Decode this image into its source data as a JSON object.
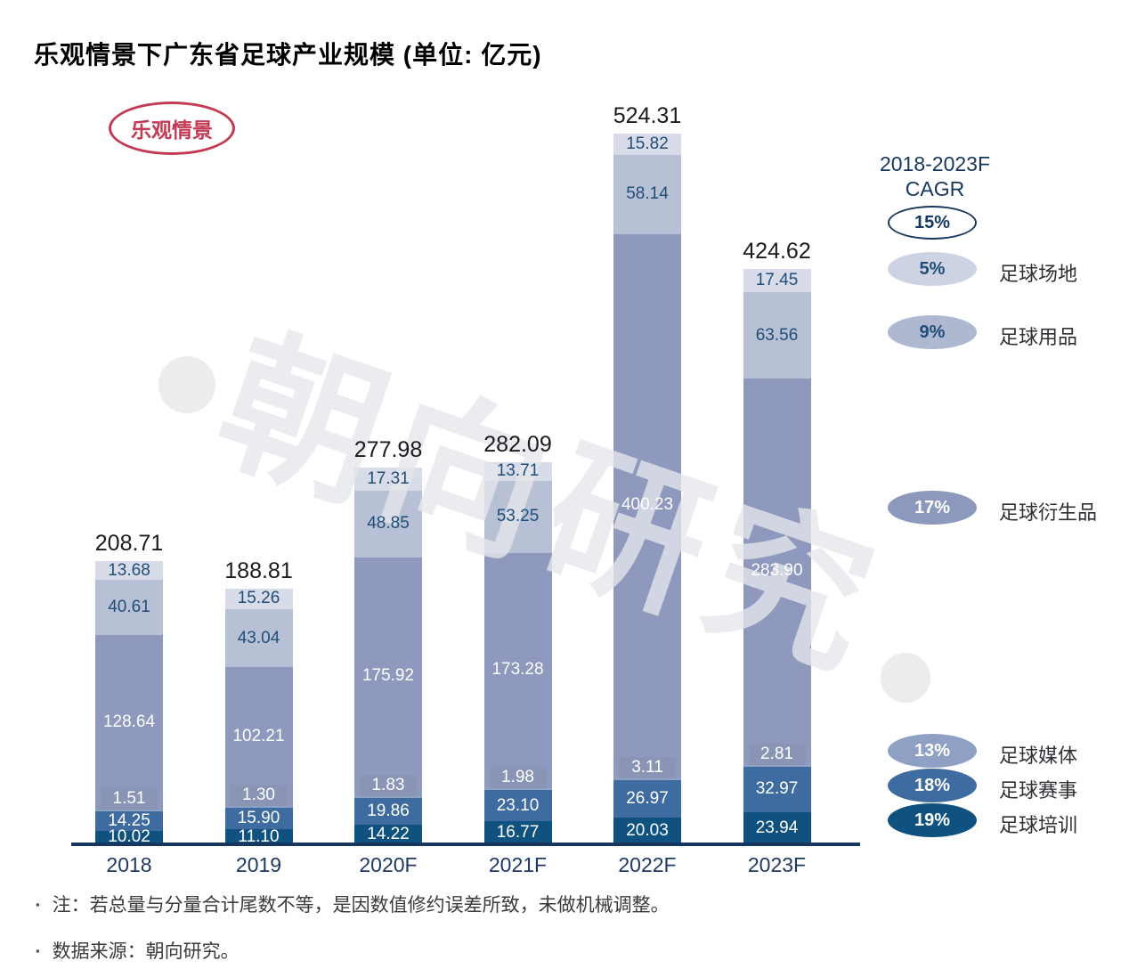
{
  "page": {
    "title": "乐观情景下广东省足球产业规模 (单位: 亿元)",
    "scenario_badge": "乐观情景",
    "watermark": "朝向研究",
    "footnotes": [
      "注：若总量与分量合计尾数不等，是因数值修约误差所致，未做机械调整。",
      "数据来源：朝向研究。"
    ],
    "accent_red": "#C23A54",
    "axis_color": "#17365D"
  },
  "legend": {
    "header_line1": "2018-2023F",
    "header_line2": "CAGR",
    "total": {
      "pct": "15%",
      "fill": "#FFFFFF",
      "border": "#17375E",
      "text_color": "#17375E"
    },
    "items": [
      {
        "pct": "5%",
        "label": "足球场地",
        "fill": "#CDD3E2",
        "text_color": "#1F4E79"
      },
      {
        "pct": "9%",
        "label": "足球用品",
        "fill": "#AEB8D0",
        "text_color": "#1F4E79"
      },
      {
        "pct": "17%",
        "label": "足球衍生品",
        "fill": "#8C98BC",
        "text_color": "#FFFFFF"
      },
      {
        "pct": "13%",
        "label": "足球媒体",
        "fill": "#8FA0C5",
        "text_color": "#FFFFFF"
      },
      {
        "pct": "18%",
        "label": "足球赛事",
        "fill": "#3E6CA1",
        "text_color": "#FFFFFF"
      },
      {
        "pct": "19%",
        "label": "足球培训",
        "fill": "#0F5280",
        "text_color": "#FFFFFF"
      }
    ]
  },
  "chart_data": {
    "type": "bar",
    "stacked": true,
    "title": "乐观情景下广东省足球产业规模",
    "unit": "亿元",
    "categories": [
      "2018",
      "2019",
      "2020F",
      "2021F",
      "2022F",
      "2023F"
    ],
    "totals": [
      208.71,
      188.81,
      277.98,
      282.09,
      524.31,
      424.62
    ],
    "series": [
      {
        "name": "足球培训",
        "cagr": "19%",
        "color": "#10527F",
        "label_color": "#FFFFFF",
        "values": [
          10.02,
          11.1,
          14.22,
          16.77,
          20.03,
          23.94
        ]
      },
      {
        "name": "足球赛事",
        "cagr": "18%",
        "color": "#3E6CA1",
        "label_color": "#FFFFFF",
        "values": [
          14.25,
          15.9,
          19.86,
          23.1,
          26.97,
          32.97
        ]
      },
      {
        "name": "足球媒体",
        "cagr": "13%",
        "color": "#8FA0C5",
        "label_color": "#FFFFFF",
        "values": [
          1.51,
          1.3,
          1.83,
          1.98,
          3.11,
          2.81
        ]
      },
      {
        "name": "足球衍生品",
        "cagr": "17%",
        "color": "#8E99BD",
        "label_color": "#FFFFFF",
        "values": [
          128.64,
          102.21,
          175.92,
          173.28,
          400.23,
          283.9
        ]
      },
      {
        "name": "足球用品",
        "cagr": "9%",
        "color": "#B8C0D5",
        "label_color": "#1F4E79",
        "values": [
          40.61,
          43.04,
          48.85,
          53.25,
          58.14,
          63.56
        ]
      },
      {
        "name": "足球场地",
        "cagr": "5%",
        "color": "#D8DCE8",
        "label_color": "#1F4E79",
        "values": [
          13.68,
          15.26,
          17.31,
          13.71,
          15.82,
          17.45
        ]
      }
    ],
    "value_labels": true,
    "legend_position": "right",
    "grid": false,
    "ylim": [
      0,
      550
    ]
  }
}
